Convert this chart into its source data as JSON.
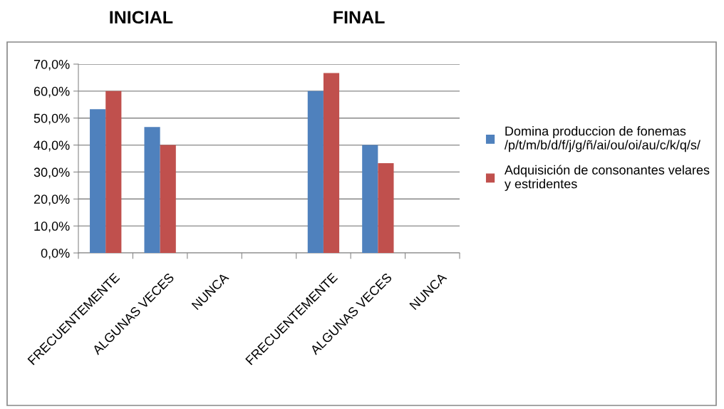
{
  "chart_data": {
    "type": "bar",
    "categories": [
      "FRECUENTEMENTE",
      "ALGUNAS VECES",
      "NUNCA",
      null,
      "FRECUENTEMENTE",
      "ALGUNAS VECES",
      "NUNCA"
    ],
    "series": [
      {
        "name": "Domina produccion de fonemas /p/t/m/b/d/f/j/g/ñ/ai/ou/oi/au/c/k/q/s/",
        "color": "#4f81bd",
        "values": [
          53.3,
          46.7,
          0,
          null,
          60,
          40,
          0
        ]
      },
      {
        "name": "Adquisición de consonantes velares y estridentes",
        "color": "#c0504d",
        "values": [
          60,
          40,
          0,
          null,
          66.7,
          33.3,
          0
        ]
      }
    ],
    "annotations": [
      "INICIAL",
      "FINAL"
    ],
    "ylim": [
      0,
      70
    ],
    "yticks": [
      {
        "value": 0,
        "label": "0,0%"
      },
      {
        "value": 10,
        "label": "10,0%"
      },
      {
        "value": 20,
        "label": "20,0%"
      },
      {
        "value": 30,
        "label": "30,0%"
      },
      {
        "value": 40,
        "label": "40,0%"
      },
      {
        "value": 50,
        "label": "50,0%"
      },
      {
        "value": 60,
        "label": "60,0%"
      },
      {
        "value": 70,
        "label": "70,0%"
      }
    ],
    "grid": "y",
    "legend": "right"
  }
}
